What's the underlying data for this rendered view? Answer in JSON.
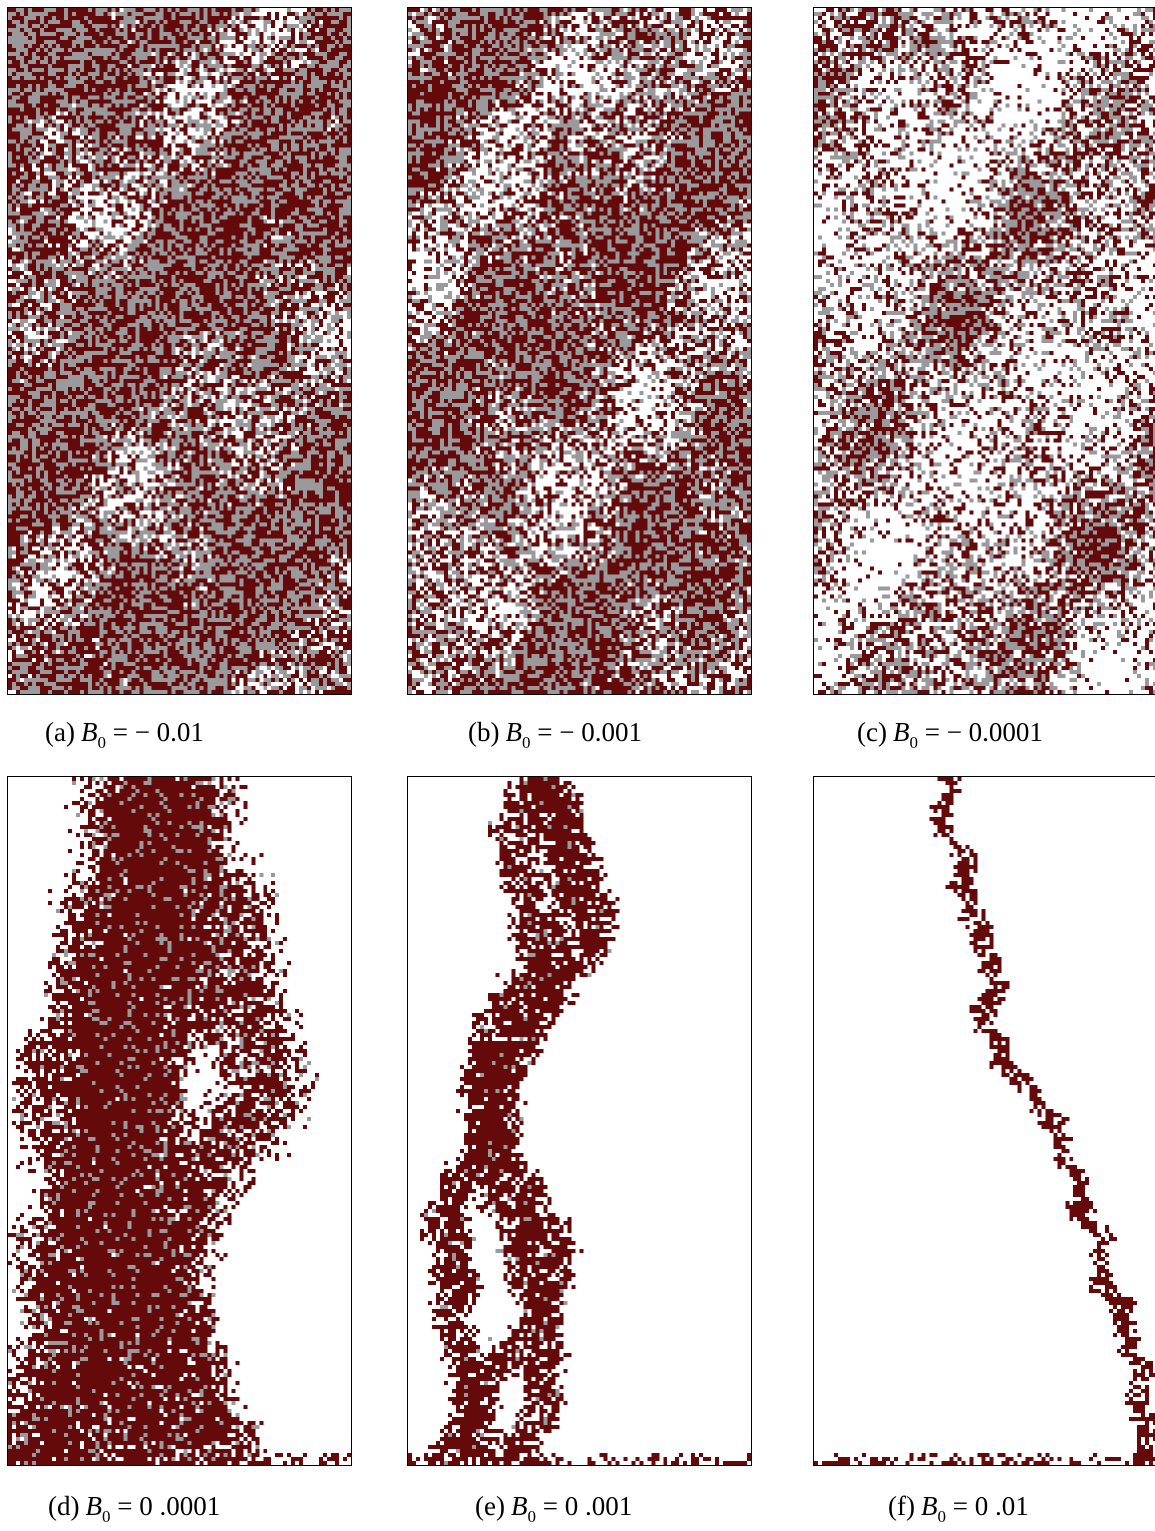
{
  "colors": {
    "cluster": "#650a0a",
    "secondary": "#9a9a9c",
    "background": "#ffffff",
    "frame": "#000000"
  },
  "panels": [
    {
      "tag": "(a)",
      "symbol": "B",
      "subscript": "0",
      "value": "= − 0.01",
      "density": 0.95,
      "gray": 0.9,
      "mode": "dense"
    },
    {
      "tag": "(b)",
      "symbol": "B",
      "subscript": "0",
      "value": "= − 0.001",
      "density": 0.82,
      "gray": 0.55,
      "mode": "dense"
    },
    {
      "tag": "(c)",
      "symbol": "B",
      "subscript": "0",
      "value": "= − 0.0001",
      "density": 0.62,
      "gray": 0.3,
      "mode": "dense"
    },
    {
      "tag": "(d)",
      "symbol": "B",
      "subscript": "0",
      "value": "= 0 .0001",
      "density": 0.55,
      "gray": 0.12,
      "mode": "blob"
    },
    {
      "tag": "(e)",
      "symbol": "B",
      "subscript": "0",
      "value": "= 0 .001",
      "density": 0.35,
      "gray": 0.04,
      "mode": "thin"
    },
    {
      "tag": "(f)",
      "symbol": "B",
      "subscript": "0",
      "value": "= 0 .01",
      "density": 0.2,
      "gray": 0.0,
      "mode": "line"
    }
  ]
}
